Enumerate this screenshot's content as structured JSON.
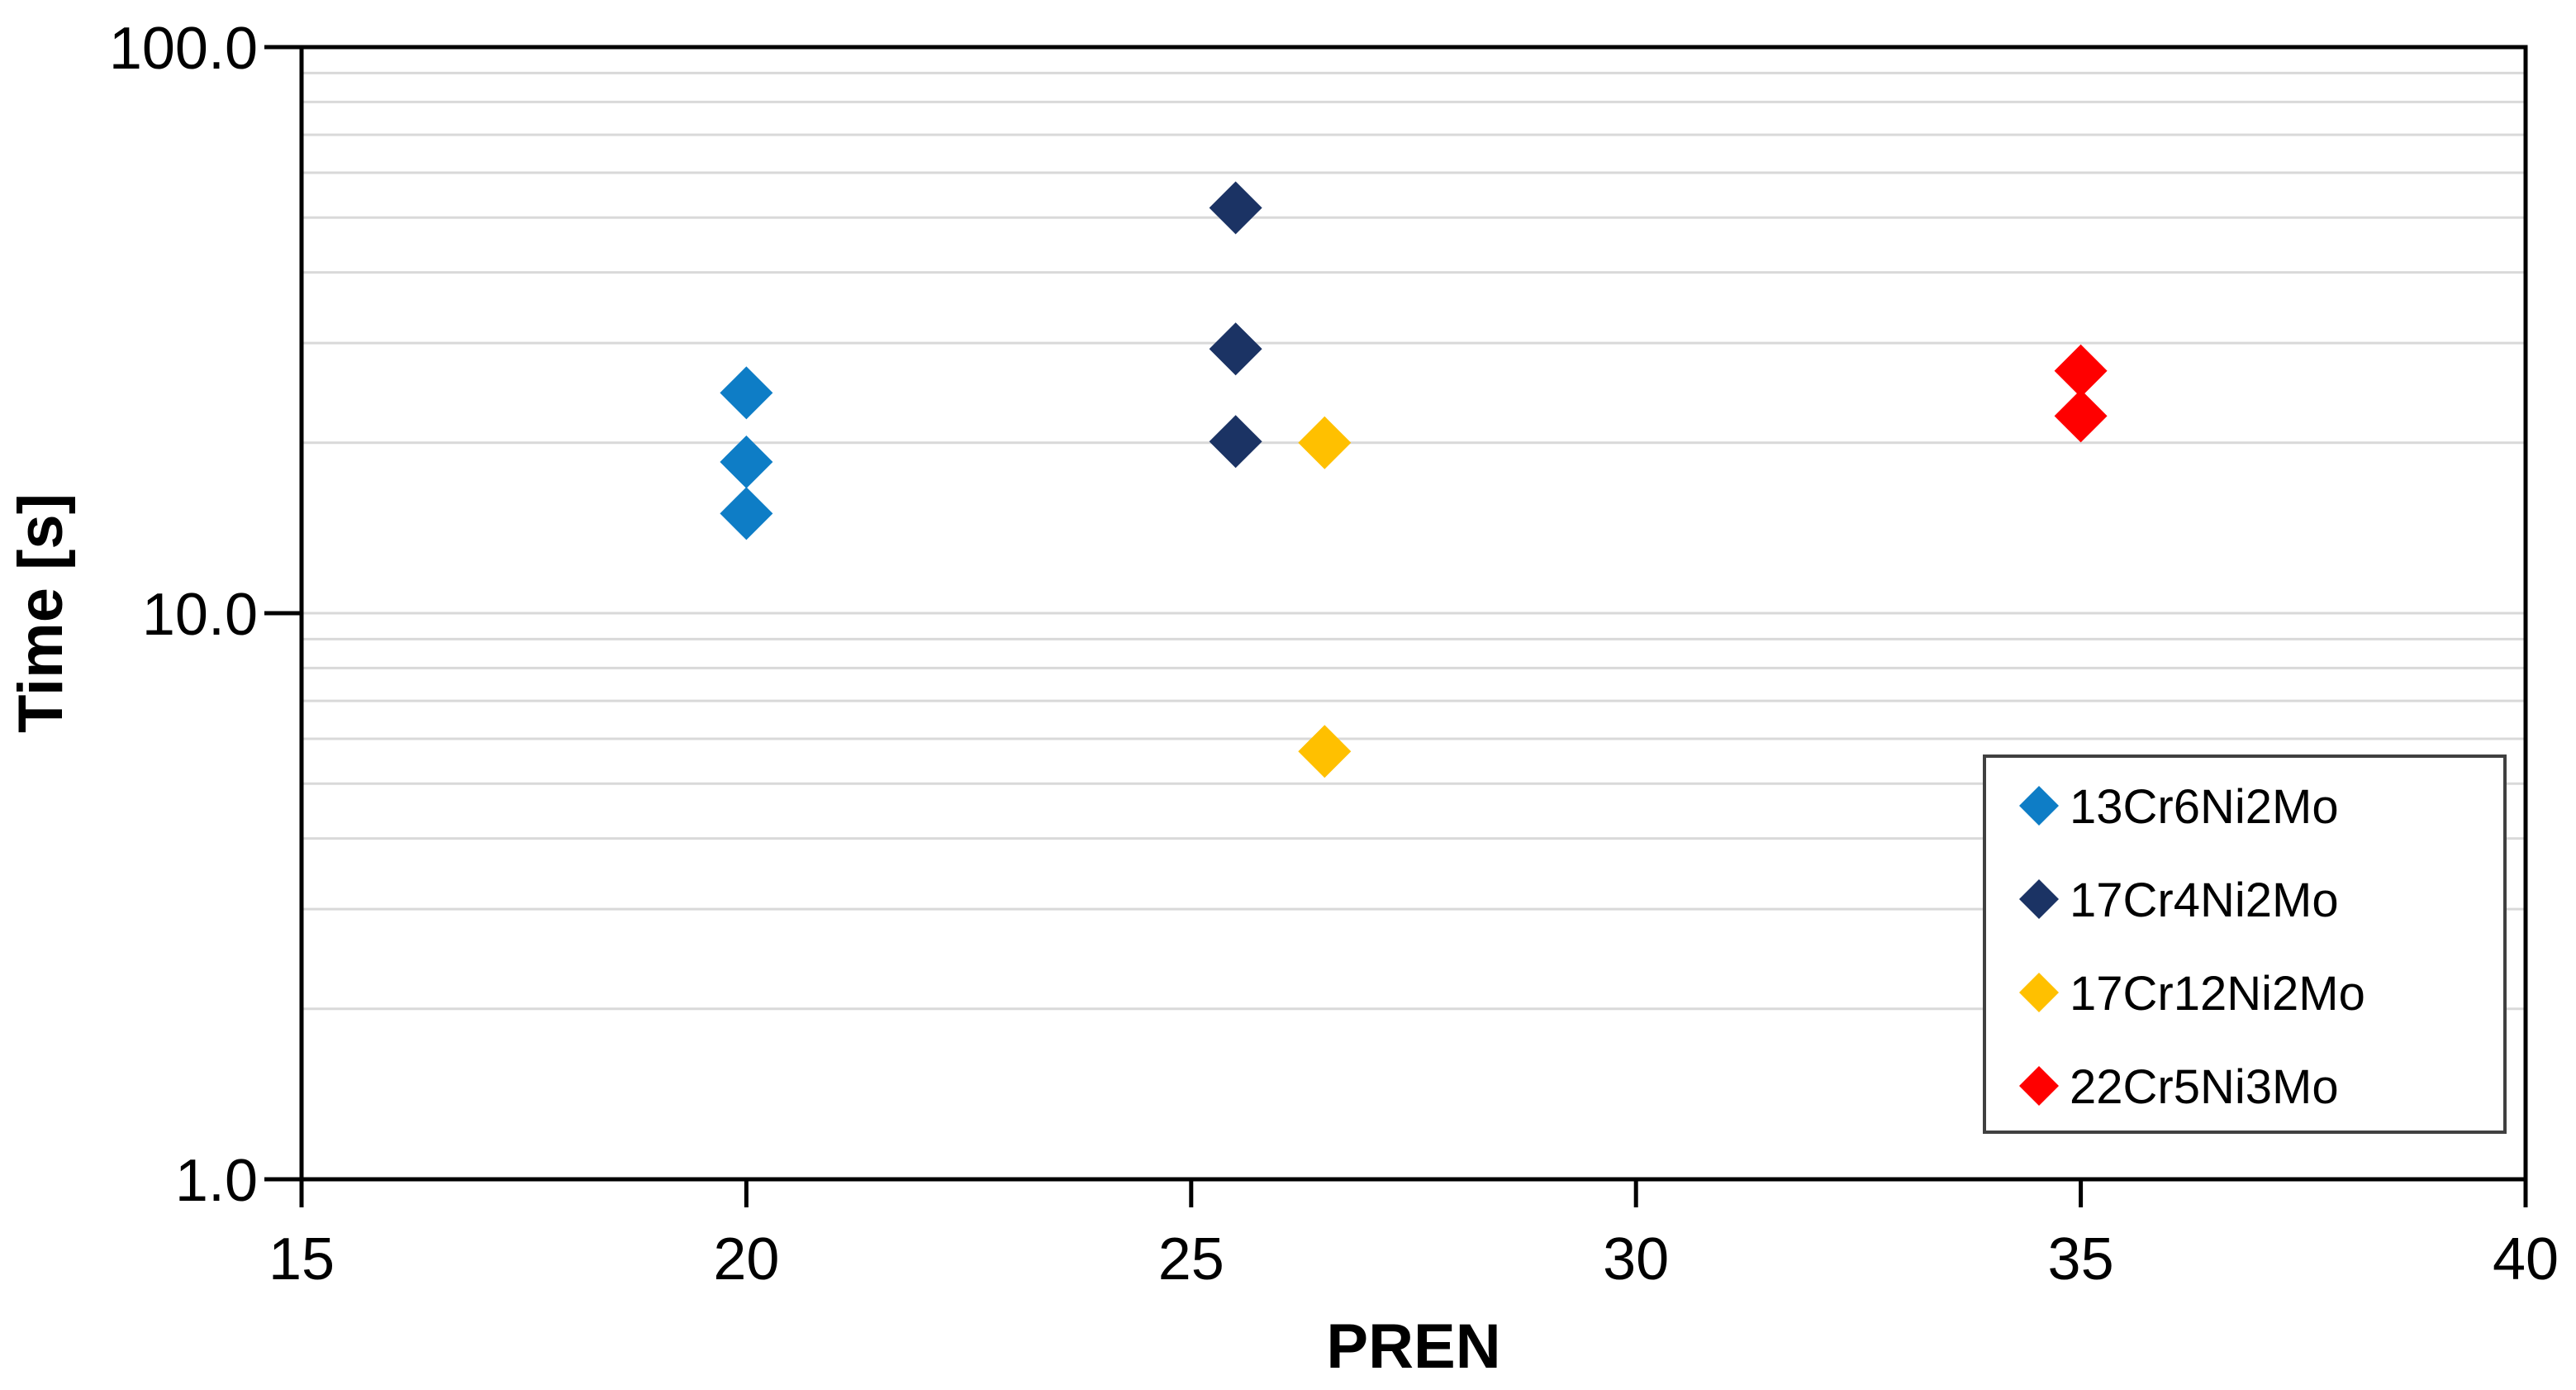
{
  "figure": {
    "background_color": "#FFFFFF",
    "frame_color": "#000000",
    "gridline_color": "#D9D9D9",
    "legend_border_color": "#404040"
  },
  "chart_data": {
    "type": "scatter",
    "title": "",
    "xlabel": "PREN",
    "ylabel": "Time [s]",
    "marker": "diamond",
    "grid": {
      "horizontal": true,
      "vertical": false
    },
    "x_axis": {
      "min": 15,
      "max": 40,
      "ticks": [
        15,
        20,
        25,
        30,
        35,
        40
      ]
    },
    "y_axis": {
      "scale": "log",
      "min": 1,
      "max": 100,
      "tick_values": [
        1,
        10,
        100
      ],
      "tick_labels": [
        "1.0",
        "10.0",
        "100.0"
      ],
      "minor_gridlines": [
        2,
        3,
        4,
        5,
        6,
        7,
        8,
        9,
        10,
        20,
        30,
        40,
        50,
        60,
        70,
        80,
        90
      ]
    },
    "legend_position": "bottom-right",
    "series": [
      {
        "name": "13Cr6Ni2Mo",
        "color": "#0E7DC6",
        "points": [
          {
            "x": 20,
            "y": 24.5
          },
          {
            "x": 20,
            "y": 18.5
          },
          {
            "x": 20,
            "y": 15.0
          }
        ]
      },
      {
        "name": "17Cr4Ni2Mo",
        "color": "#1B3364",
        "points": [
          {
            "x": 25.5,
            "y": 52.0
          },
          {
            "x": 25.5,
            "y": 29.3
          },
          {
            "x": 25.5,
            "y": 20.1
          }
        ]
      },
      {
        "name": "17Cr12Ni2Mo",
        "color": "#FFC000",
        "points": [
          {
            "x": 26.5,
            "y": 20.0
          },
          {
            "x": 26.5,
            "y": 5.7
          }
        ]
      },
      {
        "name": "22Cr5Ni3Mo",
        "color": "#FF0000",
        "points": [
          {
            "x": 35,
            "y": 26.8
          },
          {
            "x": 35,
            "y": 22.3
          }
        ]
      }
    ]
  }
}
